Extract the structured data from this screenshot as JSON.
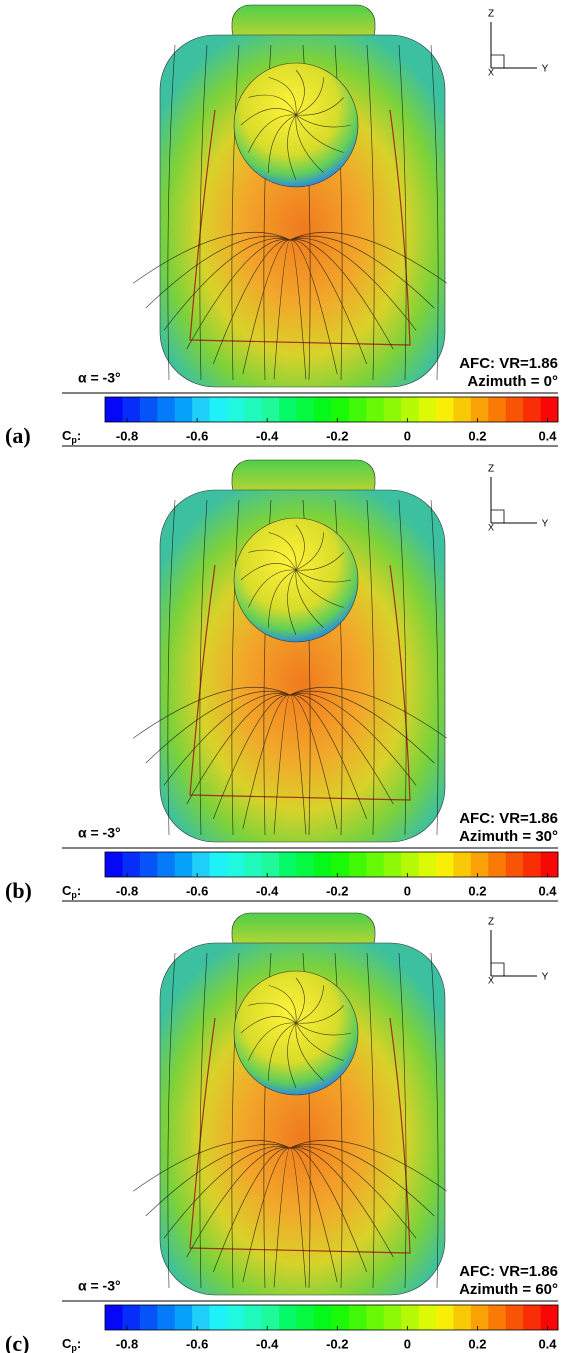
{
  "figure": {
    "panels": [
      {
        "label": "(a)",
        "alpha": "α = -3°",
        "afc": "AFC: VR=1.86",
        "azimuth": "Azimuth = 0°"
      },
      {
        "label": "(b)",
        "alpha": "α = -3°",
        "afc": "AFC: VR=1.86",
        "azimuth": "Azimuth = 30°"
      },
      {
        "label": "(c)",
        "alpha": "α = -3°",
        "afc": "AFC: VR=1.86",
        "azimuth": "Azimuth = 60°"
      }
    ],
    "colorbar": {
      "symbol": "C",
      "subscript": "p",
      "suffix": ":",
      "lim": [
        -0.863,
        0.43
      ],
      "ticks": [
        -0.8,
        -0.6,
        -0.4,
        -0.2,
        0,
        0.2,
        0.4
      ]
    },
    "axes": {
      "z": "Z",
      "y": "Y",
      "x": "X"
    }
  }
}
